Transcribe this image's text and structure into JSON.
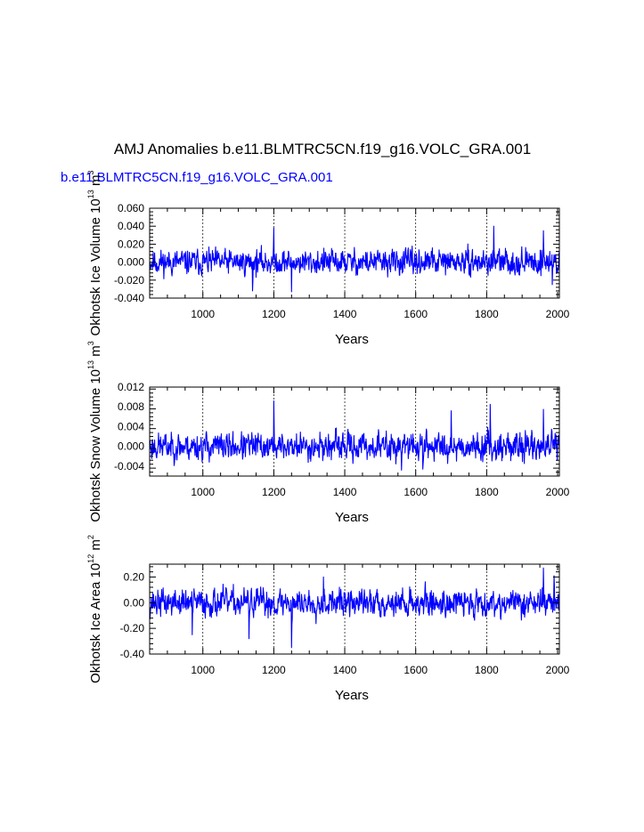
{
  "figure": {
    "title": "AMJ Anomalies b.e11.BLMTRC5CN.f19_g16.VOLC_GRA.001",
    "series_label": "b.e11.BLMTRC5CN.f19_g16.VOLC_GRA.001",
    "series_color": "#0000ff"
  },
  "chart_data": [
    {
      "type": "line",
      "name": "ice-volume",
      "title": "",
      "xlabel": "Years",
      "ylabel_text": "Okhotsk Ice Volume 10",
      "ylabel_exp": "13",
      "ylabel_unit": " m",
      "ylabel_unit_exp": "3",
      "xlim": [
        850,
        2005
      ],
      "ylim": [
        -0.04,
        0.06
      ],
      "xticks": [
        1000,
        1200,
        1400,
        1600,
        1800,
        2000
      ],
      "yticks": [
        -0.04,
        -0.02,
        0.0,
        0.02,
        0.04,
        0.06
      ],
      "ytick_labels": [
        "-0.040",
        "-0.020",
        "0.000",
        "0.020",
        "0.040",
        "0.060"
      ],
      "grid": "vertical dashed at major x ticks",
      "series": [
        {
          "name": "b.e11.BLMTRC5CN.f19_g16.VOLC_GRA.001",
          "x_start": 850,
          "x_end": 2005,
          "amplitude": 0.011,
          "spikes": [
            [
              1200,
              0.038
            ],
            [
              1820,
              0.04
            ],
            [
              1960,
              0.035
            ],
            [
              1250,
              -0.033
            ],
            [
              1140,
              -0.032
            ],
            [
              1985,
              -0.025
            ]
          ],
          "seed": 11
        }
      ]
    },
    {
      "type": "line",
      "name": "snow-volume",
      "title": "",
      "xlabel": "Years",
      "ylabel_text": "Okhotsk Snow Volume 10",
      "ylabel_exp": "13",
      "ylabel_unit": " m",
      "ylabel_unit_exp": "3",
      "xlim": [
        850,
        2005
      ],
      "ylim": [
        -0.006,
        0.012
      ],
      "xticks": [
        1000,
        1200,
        1400,
        1600,
        1800,
        2000
      ],
      "yticks": [
        -0.004,
        0.0,
        0.004,
        0.008,
        0.012
      ],
      "ytick_labels": [
        "-0.004",
        "0.000",
        "0.004",
        "0.008",
        "0.012"
      ],
      "grid": "vertical dashed at major x ticks",
      "series": [
        {
          "name": "b.e11.BLMTRC5CN.f19_g16.VOLC_GRA.001",
          "x_start": 850,
          "x_end": 2005,
          "amplitude": 0.0022,
          "spikes": [
            [
              1200,
              0.0092
            ],
            [
              1810,
              0.0085
            ],
            [
              1960,
              0.0075
            ],
            [
              1700,
              0.0072
            ],
            [
              1560,
              -0.0048
            ],
            [
              1620,
              -0.0046
            ]
          ],
          "seed": 23
        }
      ]
    },
    {
      "type": "line",
      "name": "ice-area",
      "title": "",
      "xlabel": "Years",
      "ylabel_text": "Okhotsk Ice Area 10",
      "ylabel_exp": "12",
      "ylabel_unit": " m",
      "ylabel_unit_exp": "2",
      "xlim": [
        850,
        2005
      ],
      "ylim": [
        -0.4,
        0.3
      ],
      "xticks": [
        1000,
        1200,
        1400,
        1600,
        1800,
        2000
      ],
      "yticks": [
        -0.4,
        -0.2,
        0.0,
        0.2
      ],
      "ytick_labels": [
        "-0.40",
        "-0.20",
        "0.00",
        "0.20"
      ],
      "grid": "vertical dashed at major x ticks",
      "series": [
        {
          "name": "b.e11.BLMTRC5CN.f19_g16.VOLC_GRA.001",
          "x_start": 850,
          "x_end": 2005,
          "amplitude": 0.085,
          "spikes": [
            [
              1960,
              0.27
            ],
            [
              1990,
              0.21
            ],
            [
              1250,
              -0.35
            ],
            [
              1340,
              0.2
            ],
            [
              1130,
              -0.28
            ],
            [
              970,
              -0.25
            ]
          ],
          "seed": 37
        }
      ]
    }
  ]
}
